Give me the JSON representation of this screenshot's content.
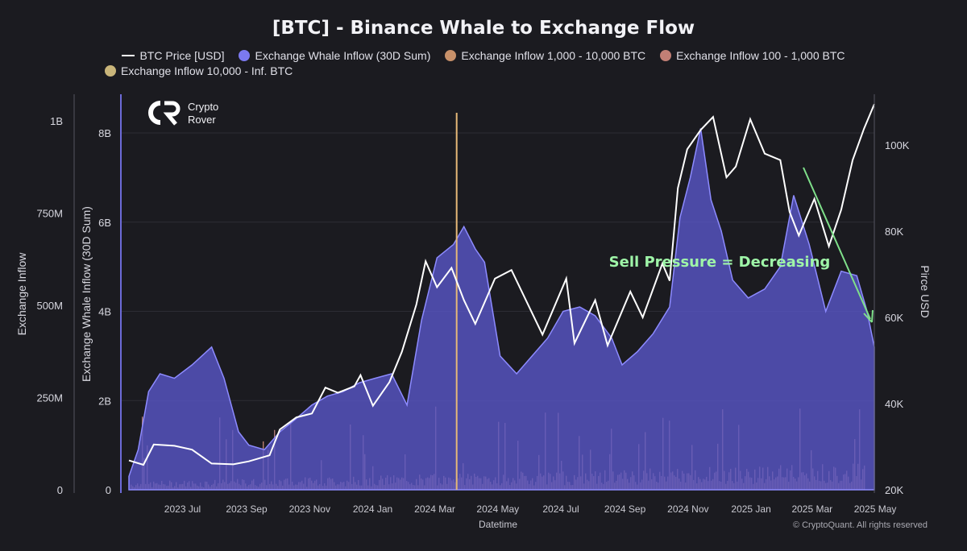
{
  "chart_data": {
    "type": "area",
    "title": "[BTC] - Binance Whale to Exchange Flow",
    "watermark_brand": {
      "line1": "Crypto",
      "line2": "Rover"
    },
    "copyright": "© CryptoQuant. All rights reserved",
    "annotation": {
      "text": "Sell Pressure = Decreasing",
      "color": "#9ff5a8"
    },
    "xlabel": "Datetime",
    "x_ticks": [
      "2023 Jul",
      "2023 Sep",
      "2023 Nov",
      "2024 Jan",
      "2024 Mar",
      "2024 May",
      "2024 Jul",
      "2024 Sep",
      "2024 Nov",
      "2025 Jan",
      "2025 Mar",
      "2025 May"
    ],
    "x_range": [
      "2023-06-01",
      "2025-05-22"
    ],
    "y_axes": {
      "inflow": {
        "label": "Exchange Inflow",
        "ticks": [
          "0",
          "250M",
          "500M",
          "750M",
          "1B"
        ],
        "range": [
          0,
          1000000000
        ]
      },
      "whale": {
        "label": "Exchange Whale Inflow (30D Sum)",
        "ticks": [
          "0",
          "2B",
          "4B",
          "6B",
          "8B"
        ],
        "range": [
          0,
          8000000000
        ]
      },
      "price": {
        "label": "Pirce USD",
        "ticks": [
          "20K",
          "40K",
          "60K",
          "80K",
          "100K"
        ],
        "range": [
          20000,
          100000
        ]
      }
    },
    "legend": [
      {
        "name": "BTC Price [USD]",
        "kind": "line",
        "color": "#ffffff"
      },
      {
        "name": "Exchange Whale Inflow (30D Sum)",
        "kind": "dot",
        "color": "#7b79f0"
      },
      {
        "name": "Exchange Inflow 1,000 - 10,000 BTC",
        "kind": "dot",
        "color": "#c8916a"
      },
      {
        "name": "Exchange Inflow 100 - 1,000 BTC",
        "kind": "dot",
        "color": "#c27f75"
      },
      {
        "name": "Exchange Inflow 10,000 - Inf. BTC",
        "kind": "dot",
        "color": "#c9b57a"
      }
    ],
    "series": [
      {
        "name": "Exchange Whale Inflow (30D Sum)",
        "axis": "whale",
        "color": "#6d6bd8",
        "points": [
          [
            "2023-06-01",
            300000000.0
          ],
          [
            "2023-06-10",
            900000000.0
          ],
          [
            "2023-06-20",
            2200000000.0
          ],
          [
            "2023-07-01",
            2600000000.0
          ],
          [
            "2023-07-15",
            2500000000.0
          ],
          [
            "2023-08-01",
            2800000000.0
          ],
          [
            "2023-08-20",
            3200000000.0
          ],
          [
            "2023-09-01",
            2500000000.0
          ],
          [
            "2023-09-15",
            1300000000.0
          ],
          [
            "2023-09-25",
            1000000000.0
          ],
          [
            "2023-10-10",
            900000000.0
          ],
          [
            "2023-10-25",
            1300000000.0
          ],
          [
            "2023-11-10",
            1600000000.0
          ],
          [
            "2023-11-25",
            1900000000.0
          ],
          [
            "2023-12-10",
            2100000000.0
          ],
          [
            "2023-12-25",
            2200000000.0
          ],
          [
            "2024-01-10",
            2400000000.0
          ],
          [
            "2024-01-25",
            2500000000.0
          ],
          [
            "2024-02-10",
            2600000000.0
          ],
          [
            "2024-02-25",
            1900000000.0
          ],
          [
            "2024-03-10",
            3800000000.0
          ],
          [
            "2024-03-25",
            5200000000.0
          ],
          [
            "2024-04-10",
            5500000000.0
          ],
          [
            "2024-04-20",
            5900000000.0
          ],
          [
            "2024-05-01",
            5400000000.0
          ],
          [
            "2024-05-10",
            5100000000.0
          ],
          [
            "2024-05-25",
            3000000000.0
          ],
          [
            "2024-06-10",
            2600000000.0
          ],
          [
            "2024-06-25",
            3000000000.0
          ],
          [
            "2024-07-10",
            3400000000.0
          ],
          [
            "2024-07-25",
            4000000000.0
          ],
          [
            "2024-08-10",
            4100000000.0
          ],
          [
            "2024-08-25",
            3900000000.0
          ],
          [
            "2024-09-10",
            3400000000.0
          ],
          [
            "2024-09-20",
            2800000000.0
          ],
          [
            "2024-10-05",
            3100000000.0
          ],
          [
            "2024-10-20",
            3500000000.0
          ],
          [
            "2024-11-05",
            4100000000.0
          ],
          [
            "2024-11-15",
            6100000000.0
          ],
          [
            "2024-11-25",
            7000000000.0
          ],
          [
            "2024-12-05",
            8100000000.0
          ],
          [
            "2024-12-15",
            6500000000.0
          ],
          [
            "2024-12-25",
            5800000000.0
          ],
          [
            "2025-01-05",
            4700000000.0
          ],
          [
            "2025-01-20",
            4300000000.0
          ],
          [
            "2025-02-05",
            4500000000.0
          ],
          [
            "2025-02-20",
            5000000000.0
          ],
          [
            "2025-03-05",
            6600000000.0
          ],
          [
            "2025-03-20",
            5500000000.0
          ],
          [
            "2025-04-05",
            4000000000.0
          ],
          [
            "2025-04-20",
            4900000000.0
          ],
          [
            "2025-05-05",
            4800000000.0
          ],
          [
            "2025-05-15",
            4000000000.0
          ],
          [
            "2025-05-22",
            3200000000.0
          ]
        ]
      },
      {
        "name": "BTC Price [USD]",
        "axis": "price",
        "color": "#ffffff",
        "points": [
          [
            "2023-06-01",
            26800
          ],
          [
            "2023-06-15",
            25800
          ],
          [
            "2023-06-25",
            30500
          ],
          [
            "2023-07-15",
            30200
          ],
          [
            "2023-08-01",
            29300
          ],
          [
            "2023-08-20",
            26100
          ],
          [
            "2023-09-10",
            25900
          ],
          [
            "2023-09-25",
            26600
          ],
          [
            "2023-10-15",
            28000
          ],
          [
            "2023-10-25",
            34000
          ],
          [
            "2023-11-10",
            36800
          ],
          [
            "2023-11-25",
            37700
          ],
          [
            "2023-12-08",
            43700
          ],
          [
            "2023-12-20",
            42500
          ],
          [
            "2024-01-05",
            44000
          ],
          [
            "2024-01-11",
            46600
          ],
          [
            "2024-01-23",
            39500
          ],
          [
            "2024-02-08",
            45000
          ],
          [
            "2024-02-20",
            52000
          ],
          [
            "2024-03-05",
            63000
          ],
          [
            "2024-03-14",
            73000
          ],
          [
            "2024-03-25",
            67000
          ],
          [
            "2024-04-08",
            71500
          ],
          [
            "2024-04-20",
            64000
          ],
          [
            "2024-05-01",
            58500
          ],
          [
            "2024-05-20",
            69000
          ],
          [
            "2024-06-05",
            71000
          ],
          [
            "2024-06-25",
            61000
          ],
          [
            "2024-07-05",
            56000
          ],
          [
            "2024-07-28",
            69000
          ],
          [
            "2024-08-05",
            54000
          ],
          [
            "2024-08-25",
            64000
          ],
          [
            "2024-09-06",
            53500
          ],
          [
            "2024-09-28",
            66000
          ],
          [
            "2024-10-10",
            60000
          ],
          [
            "2024-10-29",
            72500
          ],
          [
            "2024-11-05",
            68500
          ],
          [
            "2024-11-13",
            90000
          ],
          [
            "2024-11-22",
            99000
          ],
          [
            "2024-12-05",
            103500
          ],
          [
            "2024-12-17",
            106500
          ],
          [
            "2024-12-30",
            92500
          ],
          [
            "2025-01-08",
            95000
          ],
          [
            "2025-01-22",
            106000
          ],
          [
            "2025-02-05",
            98000
          ],
          [
            "2025-02-20",
            96500
          ],
          [
            "2025-03-01",
            84500
          ],
          [
            "2025-03-10",
            79000
          ],
          [
            "2025-03-25",
            87500
          ],
          [
            "2025-04-08",
            76500
          ],
          [
            "2025-04-20",
            85000
          ],
          [
            "2025-05-01",
            96500
          ],
          [
            "2025-05-12",
            103800
          ],
          [
            "2025-05-22",
            109500
          ]
        ]
      },
      {
        "name": "Exchange Inflow 10,000 - Inf. BTC",
        "axis": "inflow",
        "color": "#c9b57a",
        "points": [
          [
            "2024-04-13",
            1000000000
          ]
        ]
      }
    ]
  }
}
